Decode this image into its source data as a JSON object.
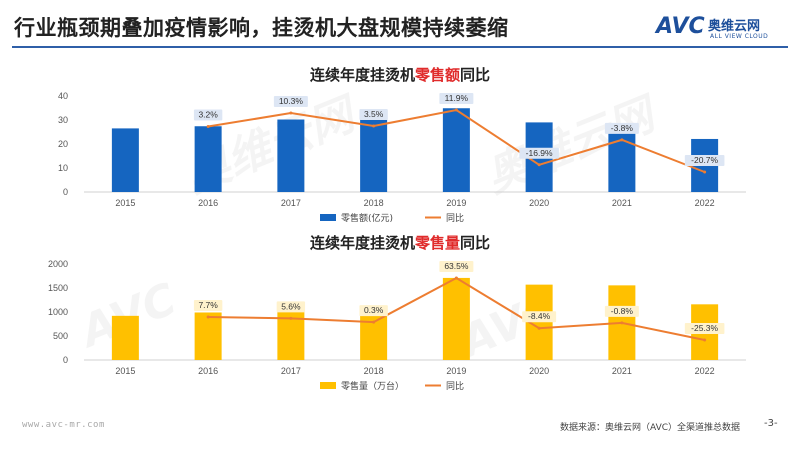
{
  "header": {
    "title": "行业瓶颈期叠加疫情影响，挂烫机大盘规模持续萎缩",
    "logo_mark": "AVC",
    "logo_name": "奥维云网",
    "logo_sub": "ALL VIEW CLOUD"
  },
  "colors": {
    "accent": "#2f5fa8",
    "highlight": "#e02b2b",
    "bar_sales": "#1565c0",
    "bar_volume": "#ffc000",
    "line": "#ed7d31",
    "label_bg": "#dde6f4",
    "label_bg_yellow": "#fff2cc"
  },
  "chart_data": [
    {
      "type": "bar",
      "title_prefix": "连续年度挂烫机",
      "title_highlight": "零售额",
      "title_suffix": "同比",
      "categories": [
        "2015",
        "2016",
        "2017",
        "2018",
        "2019",
        "2020",
        "2021",
        "2022"
      ],
      "series": [
        {
          "name": "零售额(亿元)",
          "type": "bar",
          "values": [
            26.5,
            27.4,
            30.2,
            31.2,
            34.9,
            29.0,
            27.9,
            22.1
          ]
        },
        {
          "name": "同比",
          "type": "line",
          "values": [
            null,
            3.2,
            10.3,
            3.5,
            11.9,
            -16.9,
            -3.8,
            -20.7
          ],
          "labels": [
            "",
            "3.2%",
            "10.3%",
            "3.5%",
            "11.9%",
            "-16.9%",
            "-3.8%",
            "-20.7%"
          ]
        }
      ],
      "yticks": [
        0,
        10,
        20,
        30,
        40
      ],
      "ylim": [
        0,
        40
      ],
      "line_plot_range": [
        -20.7,
        11.9
      ],
      "legend_position": "bottom"
    },
    {
      "type": "bar",
      "title_prefix": "连续年度挂烫机",
      "title_highlight": "零售量",
      "title_suffix": "同比",
      "categories": [
        "2015",
        "2016",
        "2017",
        "2018",
        "2019",
        "2020",
        "2021",
        "2022"
      ],
      "series": [
        {
          "name": "零售量（万台）",
          "type": "bar",
          "values": [
            920,
            990,
            1045,
            1050,
            1710,
            1570,
            1555,
            1160
          ]
        },
        {
          "name": "同比",
          "type": "line",
          "values": [
            null,
            7.7,
            5.6,
            0.3,
            63.5,
            -8.4,
            -0.8,
            -25.3
          ],
          "labels": [
            "",
            "7.7%",
            "5.6%",
            "0.3%",
            "63.5%",
            "-8.4%",
            "-0.8%",
            "-25.3%"
          ]
        }
      ],
      "yticks": [
        0,
        500,
        1000,
        1500,
        2000
      ],
      "ylim": [
        0,
        2000
      ],
      "line_plot_range": [
        -25.3,
        63.5
      ],
      "legend_position": "bottom"
    }
  ],
  "watermark": {
    "cn": "奥维云网",
    "mark": "AVC",
    "en": "ALL VIEW CLOUD"
  },
  "footer": {
    "url": "www.avc-mr.com",
    "source": "数据来源：奥维云网（AVC）全渠道推总数据",
    "page": "-3-"
  }
}
